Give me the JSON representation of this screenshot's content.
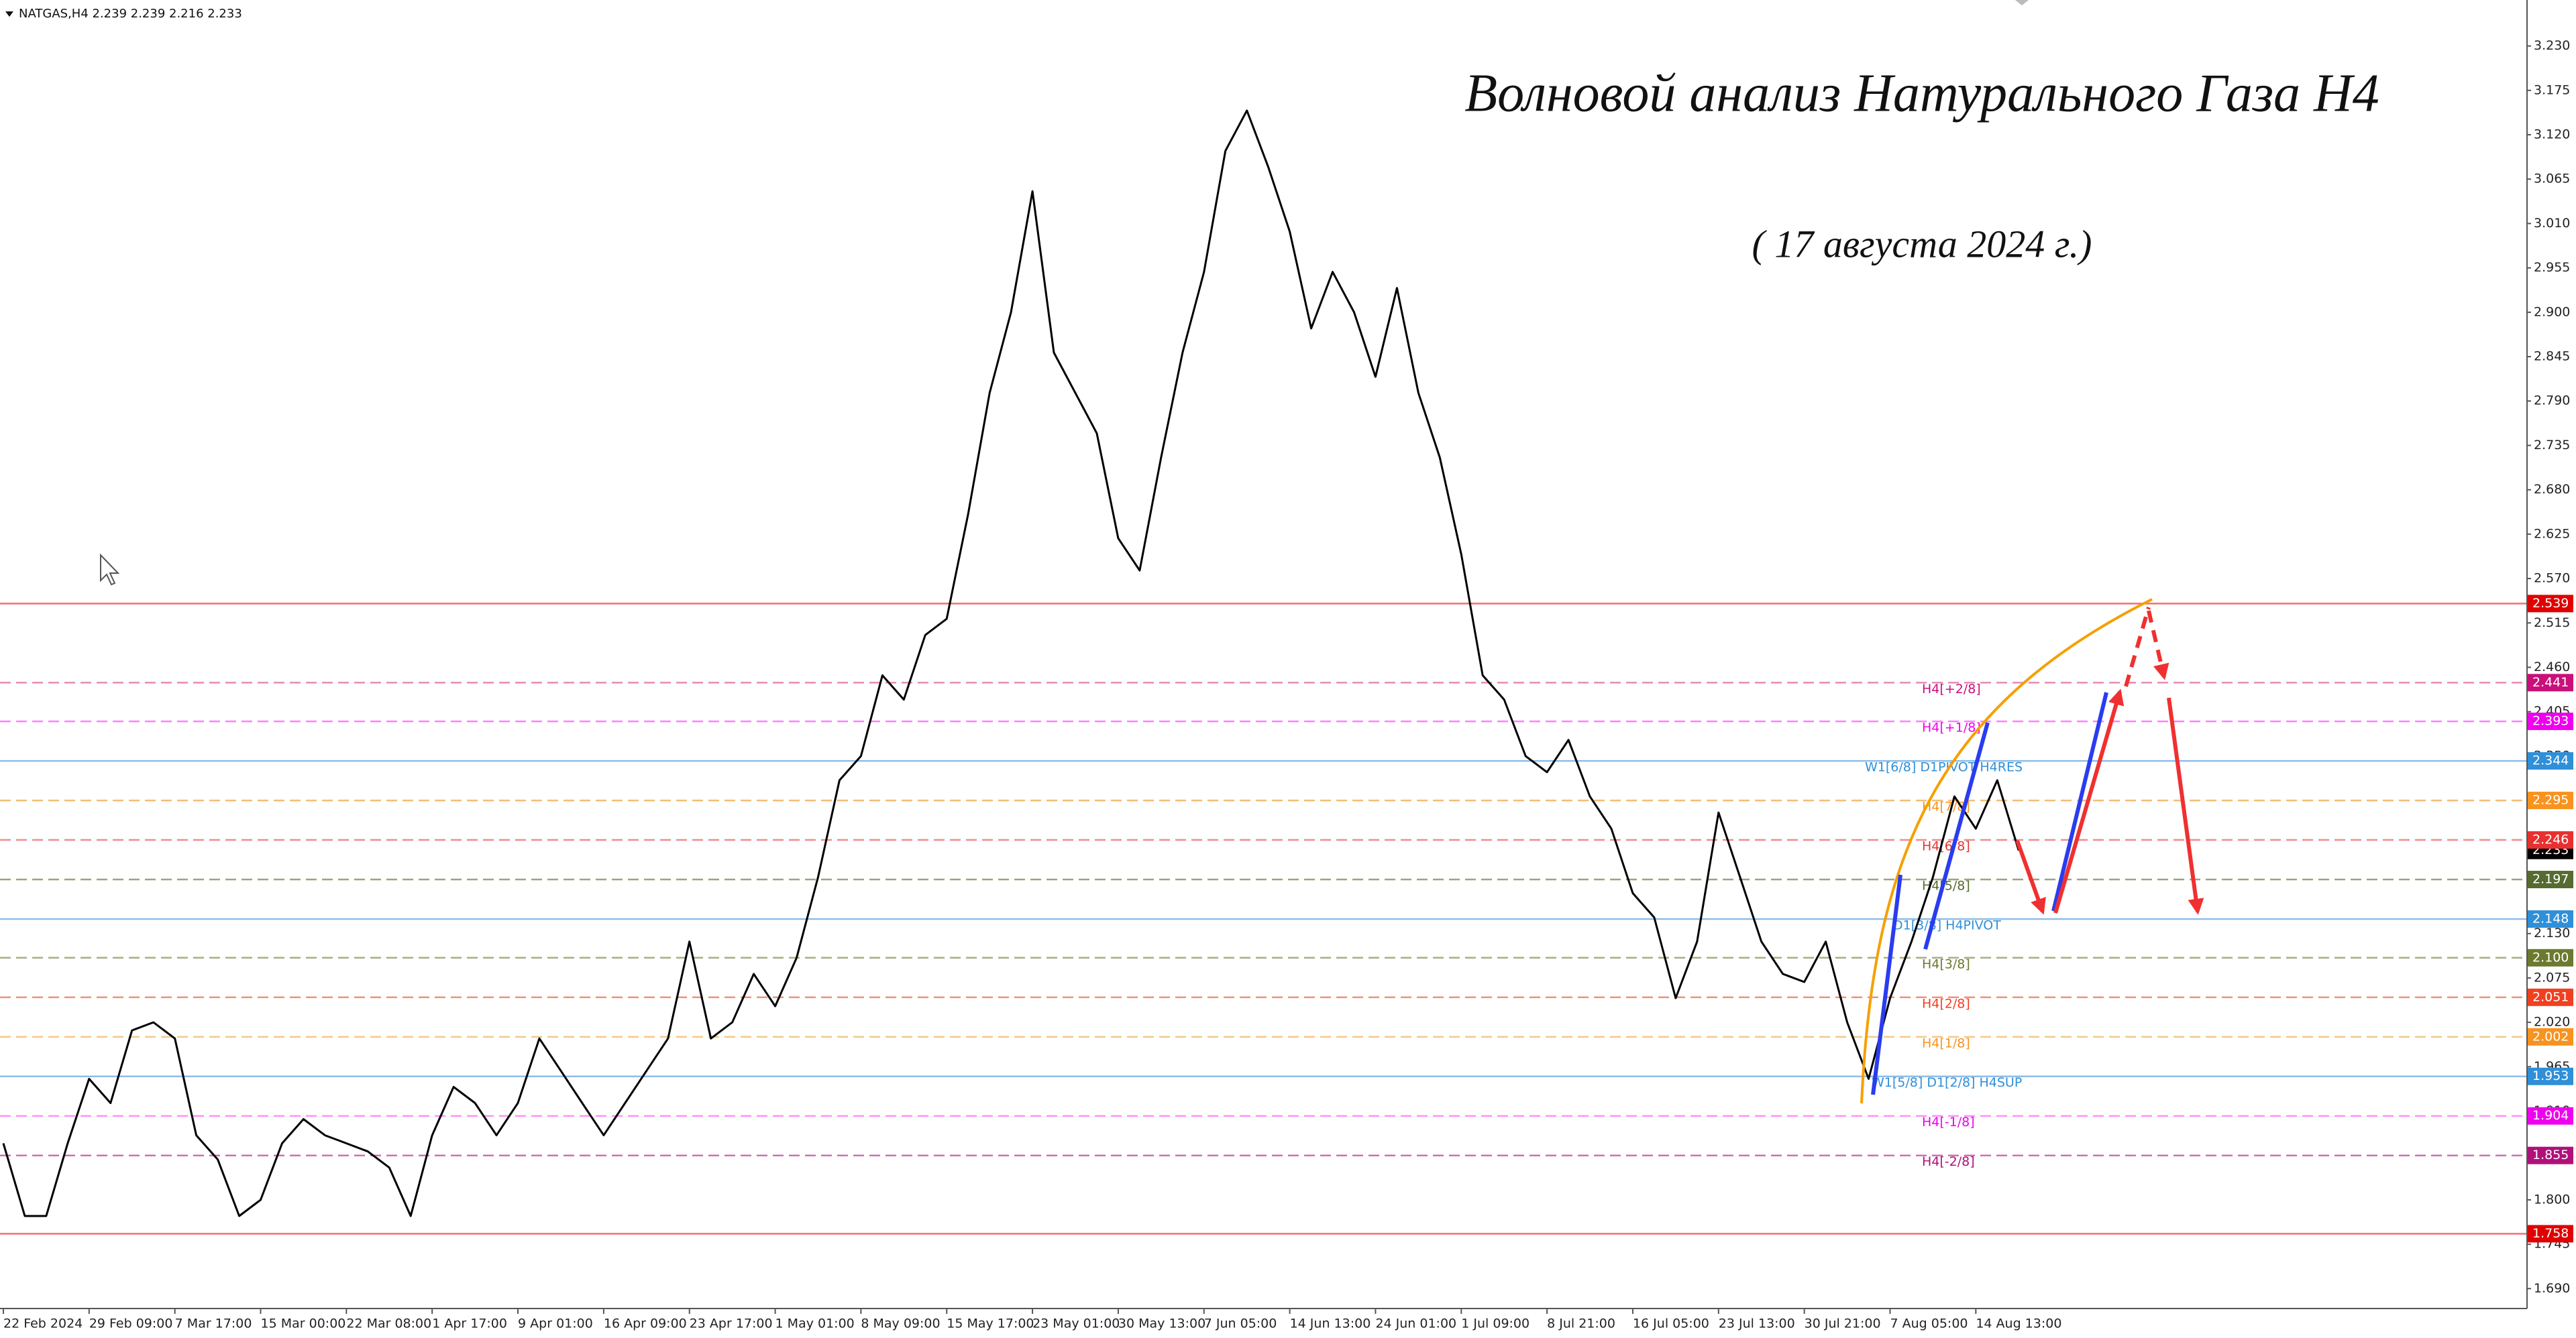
{
  "chart_data": {
    "type": "line",
    "header": "NATGAS,H4  2.239 2.239 2.216 2.233",
    "title": "Волновой анализ Натурального Газа H4",
    "subtitle": "( 17 августа 2024 г.)",
    "categories": [
      "22 Feb 2024",
      null,
      null,
      null,
      "29 Feb 09:00",
      null,
      null,
      null,
      "7 Mar 17:00",
      null,
      null,
      null,
      "15 Mar 00:00",
      null,
      null,
      null,
      "22 Mar 08:00",
      null,
      null,
      null,
      "1 Apr 17:00",
      null,
      null,
      null,
      "9 Apr 01:00",
      null,
      null,
      null,
      "16 Apr 09:00",
      null,
      null,
      null,
      "23 Apr 17:00",
      null,
      null,
      null,
      "1 May 01:00",
      null,
      null,
      null,
      "8 May 09:00",
      null,
      null,
      null,
      "15 May 17:00",
      null,
      null,
      null,
      "23 May 01:00",
      null,
      null,
      null,
      "30 May 13:00",
      null,
      null,
      null,
      "7 Jun 05:00",
      null,
      null,
      null,
      "14 Jun 13:00",
      null,
      null,
      null,
      "24 Jun 01:00",
      null,
      null,
      null,
      "1 Jul 09:00",
      null,
      null,
      null,
      "8 Jul 21:00",
      null,
      null,
      null,
      "16 Jul 05:00",
      null,
      null,
      null,
      "23 Jul 13:00",
      null,
      null,
      null,
      "30 Jul 21:00",
      null,
      null,
      null,
      "7 Aug 05:00",
      null,
      null,
      null,
      "14 Aug 13:00",
      null,
      null
    ],
    "values": [
      1.87,
      1.78,
      1.78,
      1.87,
      1.95,
      1.92,
      2.01,
      2.02,
      2.0,
      1.88,
      1.85,
      1.78,
      1.8,
      1.87,
      1.9,
      1.88,
      1.87,
      1.86,
      1.84,
      1.78,
      1.88,
      1.94,
      1.92,
      1.88,
      1.92,
      2.0,
      1.96,
      1.92,
      1.88,
      1.92,
      1.96,
      2.0,
      2.12,
      2.0,
      2.02,
      2.08,
      2.04,
      2.1,
      2.2,
      2.32,
      2.35,
      2.45,
      2.42,
      2.5,
      2.52,
      2.65,
      2.8,
      2.9,
      3.05,
      2.85,
      2.8,
      2.75,
      2.62,
      2.58,
      2.72,
      2.85,
      2.95,
      3.1,
      3.15,
      3.08,
      3.0,
      2.88,
      2.95,
      2.9,
      2.82,
      2.93,
      2.8,
      2.72,
      2.6,
      2.45,
      2.42,
      2.35,
      2.33,
      2.37,
      2.3,
      2.26,
      2.18,
      2.15,
      2.05,
      2.12,
      2.28,
      2.2,
      2.12,
      2.08,
      2.07,
      2.12,
      2.02,
      1.95,
      2.05,
      2.12,
      2.2,
      2.3,
      2.26,
      2.32,
      2.233
    ],
    "color": "#000000",
    "ylim": [
      1.667,
      3.287
    ],
    "yticks": [
      {
        "value": 3.23,
        "label": "3.230"
      },
      {
        "value": 3.175,
        "label": "3.175"
      },
      {
        "value": 3.12,
        "label": "3.120"
      },
      {
        "value": 3.065,
        "label": "3.065"
      },
      {
        "value": 3.01,
        "label": "3.010"
      },
      {
        "value": 2.955,
        "label": "2.955"
      },
      {
        "value": 2.9,
        "label": "2.900"
      },
      {
        "value": 2.845,
        "label": "2.845"
      },
      {
        "value": 2.79,
        "label": "2.790"
      },
      {
        "value": 2.735,
        "label": "2.735"
      },
      {
        "value": 2.68,
        "label": "2.680"
      },
      {
        "value": 2.625,
        "label": "2.625"
      },
      {
        "value": 2.57,
        "label": "2.570"
      },
      {
        "value": 2.515,
        "label": "2.515"
      },
      {
        "value": 2.46,
        "label": "2.460"
      },
      {
        "value": 2.405,
        "label": "2.405"
      },
      {
        "value": 2.35,
        "label": "2.350"
      },
      {
        "value": 2.13,
        "label": "2.130"
      },
      {
        "value": 2.075,
        "label": "2.075"
      },
      {
        "value": 2.02,
        "label": "2.020"
      },
      {
        "value": 1.965,
        "label": "1.965"
      },
      {
        "value": 1.91,
        "label": "1.910"
      },
      {
        "value": 1.8,
        "label": "1.800"
      },
      {
        "value": 1.745,
        "label": "1.745"
      },
      {
        "value": 1.69,
        "label": "1.690"
      }
    ],
    "current_price": {
      "value": 2.233,
      "label": "2.233",
      "color": "#000000"
    },
    "levels": [
      {
        "value": 2.539,
        "label": "2.539",
        "color": "#e00000",
        "line_color": "#f07070",
        "style": "solid"
      },
      {
        "value": 2.441,
        "label": "2.441",
        "text": "H4[+2/8]",
        "color": "#c8107a",
        "line_color": "#e88ab8",
        "style": "dashed"
      },
      {
        "value": 2.393,
        "label": "2.393",
        "text": "H4[+1/8]",
        "color": "#ee00ee",
        "line_color": "#ff80ff",
        "style": "dashed"
      },
      {
        "value": 2.344,
        "label": "2.344",
        "text": "W1[6/8] D1PIVOT H4RES",
        "color": "#2f8fd8",
        "line_color": "#8fbde8",
        "style": "solid"
      },
      {
        "value": 2.295,
        "label": "2.295",
        "text": "H4[7/8]",
        "color": "#f7931e",
        "line_color": "#f4bd78",
        "style": "dashed"
      },
      {
        "value": 2.246,
        "label": "2.246",
        "text": "H4[6/8]",
        "color": "#e83030",
        "line_color": "#f08a8a",
        "style": "dashed"
      },
      {
        "value": 2.197,
        "label": "2.197",
        "text": "H4[5/8]",
        "color": "#556b2f",
        "line_color": "#9aa67a",
        "style": "dashed"
      },
      {
        "value": 2.148,
        "label": "2.148",
        "text": "D1[3/8] H4PIVOT",
        "color": "#2f8fd8",
        "line_color": "#8fbde8",
        "style": "solid"
      },
      {
        "value": 2.1,
        "label": "2.100",
        "text": "H4[3/8]",
        "color": "#6b7a2f",
        "line_color": "#a8ae82",
        "style": "dashed"
      },
      {
        "value": 2.051,
        "label": "2.051",
        "text": "H4[2/8]",
        "color": "#f04020",
        "line_color": "#f29080",
        "style": "dashed"
      },
      {
        "value": 2.002,
        "label": "2.002",
        "text": "H4[1/8]",
        "color": "#f7931e",
        "line_color": "#f6c88a",
        "style": "dashed"
      },
      {
        "value": 1.953,
        "label": "1.953",
        "text": "W1[5/8] D1[2/8] H4SUP",
        "color": "#2f8fd8",
        "line_color": "#8fbde8",
        "style": "solid"
      },
      {
        "value": 1.904,
        "label": "1.904",
        "text": "H4[-1/8]",
        "color": "#ee00ee",
        "line_color": "#ff90ff",
        "style": "dashed"
      },
      {
        "value": 1.855,
        "label": "1.855",
        "text": "H4[-2/8]",
        "color": "#b0107a",
        "line_color": "#d070b0",
        "style": "dashed"
      },
      {
        "value": 1.758,
        "label": "1.758",
        "color": "#e00000",
        "line_color": "#f07070",
        "style": "solid"
      }
    ]
  }
}
